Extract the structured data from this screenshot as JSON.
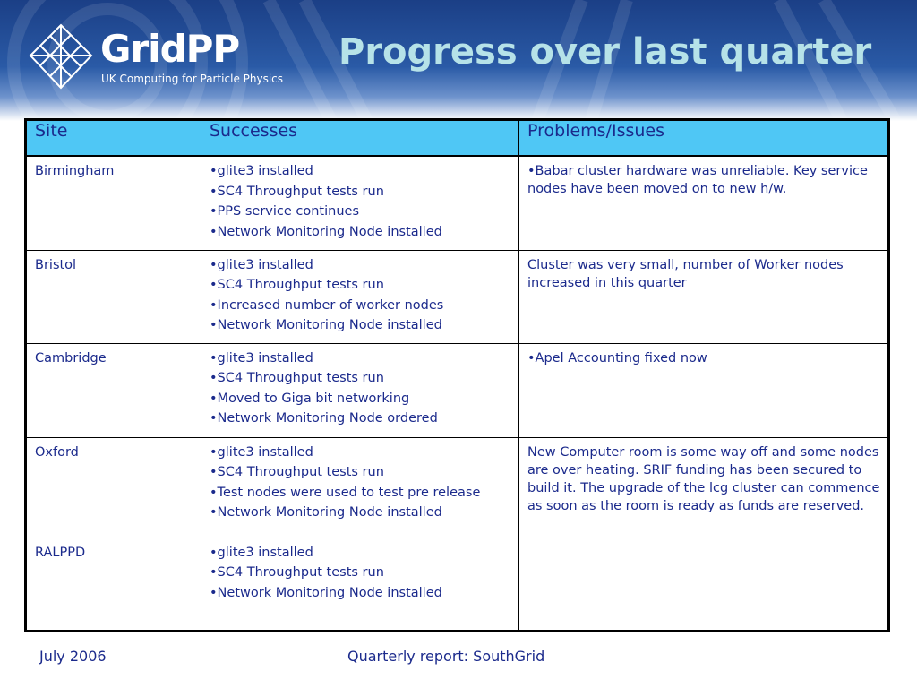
{
  "header": {
    "logo_text": "GridPP",
    "logo_subtitle": "UK Computing for Particle Physics",
    "title": "Progress over last quarter"
  },
  "table": {
    "columns": [
      "Site",
      "Successes",
      "Problems/Issues"
    ],
    "rows": [
      {
        "site": "Birmingham",
        "successes": [
          "•glite3 installed",
          "•SC4 Throughput tests run",
          "•PPS service continues",
          "•Network Monitoring Node installed"
        ],
        "problems": "•Babar cluster hardware was unreliable. Key service nodes have been moved on to new h/w."
      },
      {
        "site": "Bristol",
        "successes": [
          "•glite3 installed",
          "•SC4 Throughput tests run",
          "•Increased number of worker nodes",
          "•Network Monitoring Node installed"
        ],
        "problems": "Cluster was very small, number of Worker nodes increased in this quarter"
      },
      {
        "site": "Cambridge",
        "successes": [
          "•glite3 installed",
          "•SC4 Throughput tests run",
          "•Moved to Giga bit networking",
          "•Network Monitoring Node ordered"
        ],
        "problems": "•Apel Accounting fixed now"
      },
      {
        "site": "Oxford",
        "successes": [
          "•glite3 installed",
          "•SC4 Throughput tests run",
          "•Test nodes were used to test pre release",
          "•Network Monitoring Node installed"
        ],
        "problems": "New Computer room is some way off and some nodes are over heating. SRIF funding has been secured to build it. The upgrade of the lcg cluster can commence as soon as the room is ready as funds are reserved."
      },
      {
        "site": "RALPPD",
        "successes": [
          "•glite3 installed",
          "•SC4 Throughput tests run",
          "•Network Monitoring Node installed"
        ],
        "problems": ""
      }
    ]
  },
  "footer": {
    "date": "July 2006",
    "report": "Quarterly report: SouthGrid"
  },
  "colors": {
    "header_bg": "#1b3f86",
    "title": "#b6e2e8",
    "table_header_bg": "#4fc7f5",
    "text": "#1b2a8c"
  }
}
